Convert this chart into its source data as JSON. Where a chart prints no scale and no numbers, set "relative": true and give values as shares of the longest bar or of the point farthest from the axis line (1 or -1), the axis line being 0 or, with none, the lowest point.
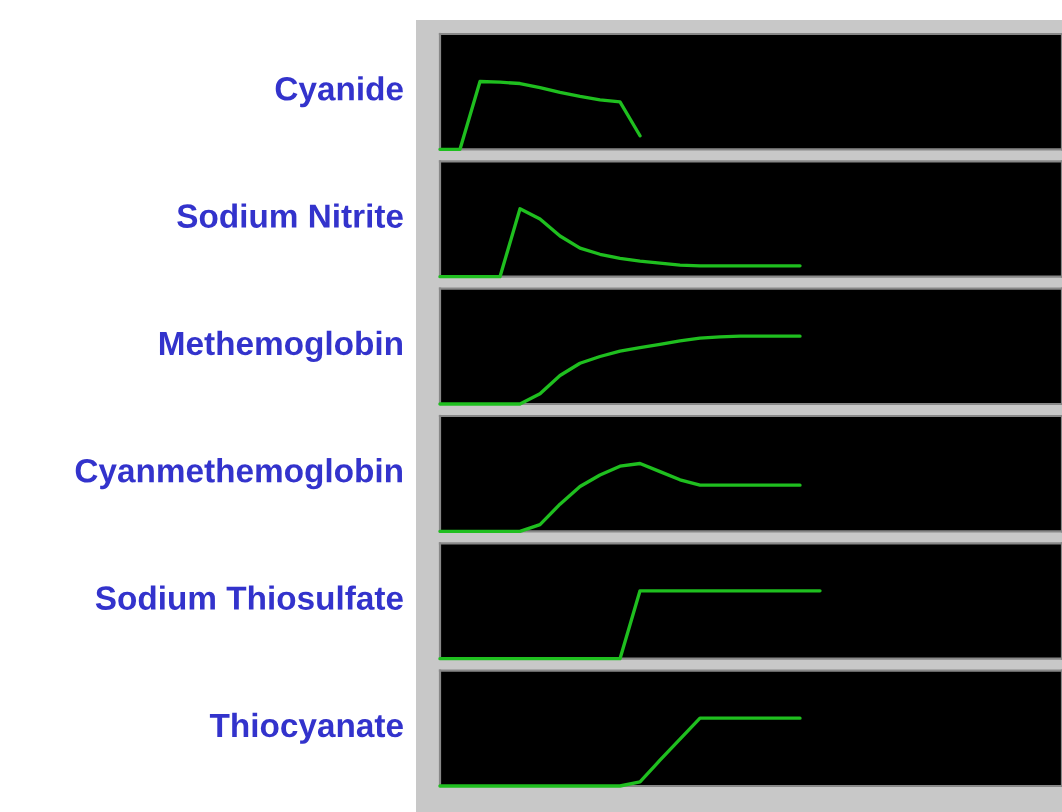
{
  "chart_data": [
    {
      "type": "line",
      "relative": true,
      "ylabel": "Cyanide",
      "categories": [
        null,
        null,
        null,
        null,
        null,
        null,
        null,
        null,
        null,
        null,
        null
      ],
      "series": [
        {
          "color": "#1fbf1f",
          "values": [
            0,
            0,
            1.0,
            0.99,
            0.97,
            0.91,
            0.84,
            0.78,
            0.73,
            0.7,
            0.2
          ]
        }
      ]
    },
    {
      "type": "line",
      "relative": true,
      "ylabel": "Sodium Nitrite",
      "categories": [
        null,
        null,
        null,
        null,
        null,
        null,
        null,
        null,
        null,
        null,
        null,
        null,
        null,
        null,
        null,
        null,
        null,
        null,
        null
      ],
      "series": [
        {
          "color": "#1fbf1f",
          "values": [
            0,
            0,
            0,
            0,
            1.0,
            0.85,
            0.6,
            0.42,
            0.33,
            0.27,
            0.23,
            0.2,
            0.17,
            0.16,
            0.16,
            0.16,
            0.16,
            0.16,
            0.16
          ]
        }
      ]
    },
    {
      "type": "line",
      "relative": true,
      "ylabel": "Methemoglobin",
      "categories": [
        null,
        null,
        null,
        null,
        null,
        null,
        null,
        null,
        null,
        null,
        null,
        null,
        null,
        null,
        null,
        null,
        null,
        null,
        null
      ],
      "series": [
        {
          "color": "#1fbf1f",
          "values": [
            0,
            0,
            0,
            0,
            0,
            0.15,
            0.42,
            0.6,
            0.7,
            0.78,
            0.83,
            0.88,
            0.93,
            0.97,
            0.99,
            1,
            1,
            1,
            1
          ]
        }
      ]
    },
    {
      "type": "line",
      "relative": true,
      "ylabel": "Cyanmethemoglobin",
      "categories": [
        null,
        null,
        null,
        null,
        null,
        null,
        null,
        null,
        null,
        null,
        null,
        null,
        null,
        null,
        null,
        null,
        null,
        null,
        null
      ],
      "series": [
        {
          "color": "#1fbf1f",
          "values": [
            0,
            0,
            0,
            0,
            0,
            0.1,
            0.4,
            0.66,
            0.83,
            0.96,
            1.0,
            0.88,
            0.76,
            0.68,
            0.68,
            0.68,
            0.68,
            0.68,
            0.68
          ]
        }
      ]
    },
    {
      "type": "line",
      "relative": true,
      "ylabel": "Sodium Thiosulfate",
      "categories": [
        null,
        null,
        null,
        null,
        null,
        null,
        null,
        null,
        null,
        null,
        null,
        null,
        null,
        null,
        null,
        null,
        null,
        null,
        null,
        null
      ],
      "series": [
        {
          "color": "#1fbf1f",
          "values": [
            0,
            0,
            0,
            0,
            0,
            0,
            0,
            0,
            0,
            0,
            1,
            1,
            1,
            1,
            1,
            1,
            1,
            1,
            1,
            1
          ]
        }
      ]
    },
    {
      "type": "line",
      "relative": true,
      "ylabel": "Thiocyanate",
      "categories": [
        null,
        null,
        null,
        null,
        null,
        null,
        null,
        null,
        null,
        null,
        null,
        null,
        null,
        null,
        null,
        null,
        null,
        null,
        null
      ],
      "series": [
        {
          "color": "#1fbf1f",
          "values": [
            0,
            0,
            0,
            0,
            0,
            0,
            0,
            0,
            0,
            0,
            0.06,
            0.38,
            0.69,
            1,
            1,
            1,
            1,
            1,
            1
          ]
        }
      ]
    }
  ]
}
